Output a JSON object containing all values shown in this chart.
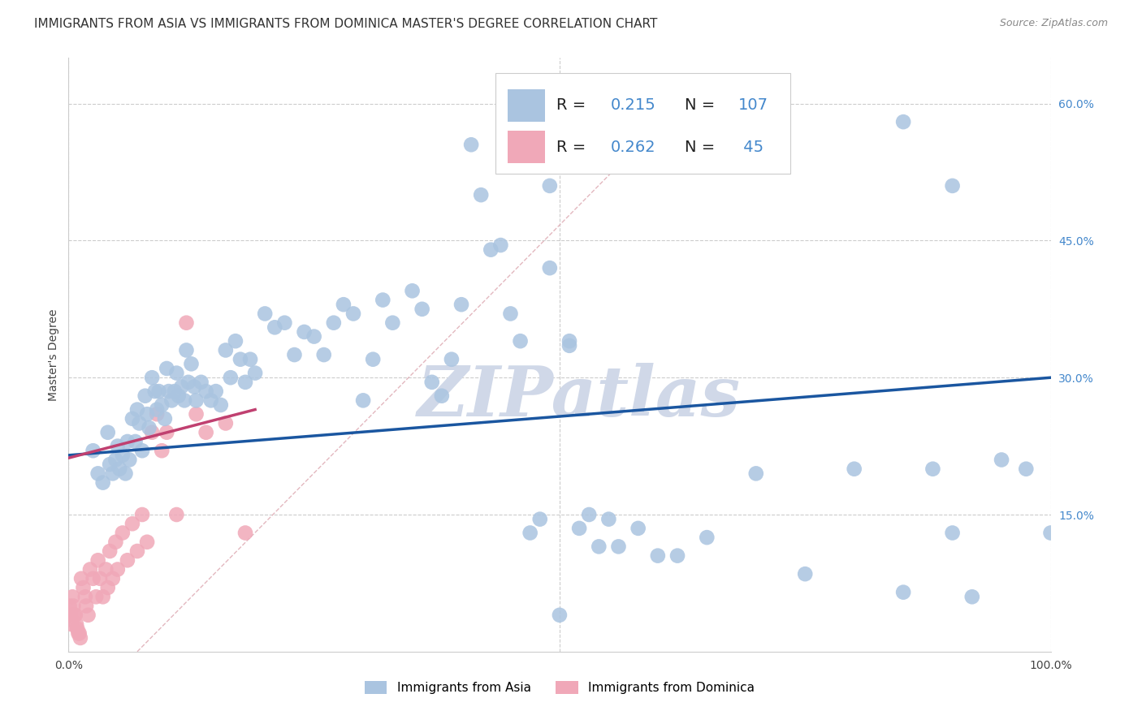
{
  "title": "IMMIGRANTS FROM ASIA VS IMMIGRANTS FROM DOMINICA MASTER'S DEGREE CORRELATION CHART",
  "source": "Source: ZipAtlas.com",
  "ylabel": "Master's Degree",
  "xlim": [
    0.0,
    1.0
  ],
  "ylim": [
    0.0,
    0.65
  ],
  "xtick_positions": [
    0.0,
    0.1,
    0.2,
    0.3,
    0.4,
    0.5,
    0.6,
    0.7,
    0.8,
    0.9,
    1.0
  ],
  "xticklabels": [
    "0.0%",
    "",
    "",
    "",
    "",
    "",
    "",
    "",
    "",
    "",
    "100.0%"
  ],
  "ytick_positions": [
    0.15,
    0.3,
    0.45,
    0.6
  ],
  "ytick_labels": [
    "15.0%",
    "30.0%",
    "45.0%",
    "60.0%"
  ],
  "legend_r_asia": "0.215",
  "legend_n_asia": "107",
  "legend_r_dominica": "0.262",
  "legend_n_dominica": "45",
  "color_asia": "#aac4e0",
  "color_asia_edge": "#aac4e0",
  "color_dominica": "#f0a8b8",
  "color_dominica_edge": "#f0a8b8",
  "color_trend_asia": "#1a56a0",
  "color_legend_text": "#4488cc",
  "color_diagonal": "#e0b0b8",
  "watermark_text": "ZIPatlas",
  "watermark_color": "#d0d8e8",
  "asia_x": [
    0.025,
    0.03,
    0.035,
    0.04,
    0.042,
    0.045,
    0.048,
    0.05,
    0.052,
    0.055,
    0.058,
    0.06,
    0.062,
    0.065,
    0.068,
    0.07,
    0.072,
    0.075,
    0.078,
    0.08,
    0.082,
    0.085,
    0.088,
    0.09,
    0.092,
    0.095,
    0.098,
    0.1,
    0.102,
    0.105,
    0.108,
    0.11,
    0.112,
    0.115,
    0.118,
    0.12,
    0.122,
    0.125,
    0.128,
    0.13,
    0.135,
    0.14,
    0.145,
    0.15,
    0.155,
    0.16,
    0.165,
    0.17,
    0.175,
    0.18,
    0.185,
    0.19,
    0.2,
    0.21,
    0.22,
    0.23,
    0.24,
    0.25,
    0.26,
    0.27,
    0.28,
    0.29,
    0.3,
    0.31,
    0.32,
    0.33,
    0.35,
    0.36,
    0.37,
    0.38,
    0.39,
    0.4,
    0.41,
    0.42,
    0.43,
    0.44,
    0.45,
    0.46,
    0.47,
    0.48,
    0.49,
    0.5,
    0.51,
    0.52,
    0.53,
    0.54,
    0.55,
    0.56,
    0.58,
    0.6,
    0.62,
    0.65,
    0.7,
    0.75,
    0.8,
    0.85,
    0.88,
    0.9,
    0.92,
    0.95,
    0.975,
    1.0,
    0.85,
    0.9,
    0.5,
    0.51,
    0.49
  ],
  "asia_y": [
    0.22,
    0.195,
    0.185,
    0.24,
    0.205,
    0.195,
    0.21,
    0.225,
    0.2,
    0.215,
    0.195,
    0.23,
    0.21,
    0.255,
    0.23,
    0.265,
    0.25,
    0.22,
    0.28,
    0.26,
    0.245,
    0.3,
    0.285,
    0.265,
    0.285,
    0.27,
    0.255,
    0.31,
    0.285,
    0.275,
    0.285,
    0.305,
    0.28,
    0.29,
    0.275,
    0.33,
    0.295,
    0.315,
    0.29,
    0.275,
    0.295,
    0.285,
    0.275,
    0.285,
    0.27,
    0.33,
    0.3,
    0.34,
    0.32,
    0.295,
    0.32,
    0.305,
    0.37,
    0.355,
    0.36,
    0.325,
    0.35,
    0.345,
    0.325,
    0.36,
    0.38,
    0.37,
    0.275,
    0.32,
    0.385,
    0.36,
    0.395,
    0.375,
    0.295,
    0.28,
    0.32,
    0.38,
    0.555,
    0.5,
    0.44,
    0.445,
    0.37,
    0.34,
    0.13,
    0.145,
    0.51,
    0.55,
    0.335,
    0.135,
    0.15,
    0.115,
    0.145,
    0.115,
    0.135,
    0.105,
    0.105,
    0.125,
    0.195,
    0.085,
    0.2,
    0.065,
    0.2,
    0.13,
    0.06,
    0.21,
    0.2,
    0.13,
    0.58,
    0.51,
    0.04,
    0.34,
    0.42
  ],
  "dominica_x": [
    0.001,
    0.002,
    0.003,
    0.004,
    0.005,
    0.006,
    0.007,
    0.008,
    0.009,
    0.01,
    0.011,
    0.012,
    0.013,
    0.015,
    0.017,
    0.018,
    0.02,
    0.022,
    0.025,
    0.028,
    0.03,
    0.032,
    0.035,
    0.038,
    0.04,
    0.042,
    0.045,
    0.048,
    0.05,
    0.055,
    0.06,
    0.065,
    0.07,
    0.075,
    0.08,
    0.085,
    0.09,
    0.095,
    0.1,
    0.11,
    0.12,
    0.13,
    0.14,
    0.16,
    0.18
  ],
  "dominica_y": [
    0.05,
    0.04,
    0.03,
    0.06,
    0.05,
    0.04,
    0.04,
    0.03,
    0.025,
    0.02,
    0.02,
    0.015,
    0.08,
    0.07,
    0.06,
    0.05,
    0.04,
    0.09,
    0.08,
    0.06,
    0.1,
    0.08,
    0.06,
    0.09,
    0.07,
    0.11,
    0.08,
    0.12,
    0.09,
    0.13,
    0.1,
    0.14,
    0.11,
    0.15,
    0.12,
    0.24,
    0.26,
    0.22,
    0.24,
    0.15,
    0.36,
    0.26,
    0.24,
    0.25,
    0.13
  ],
  "grid_color": "#cccccc",
  "title_fontsize": 11,
  "axis_label_fontsize": 10,
  "tick_fontsize": 10
}
